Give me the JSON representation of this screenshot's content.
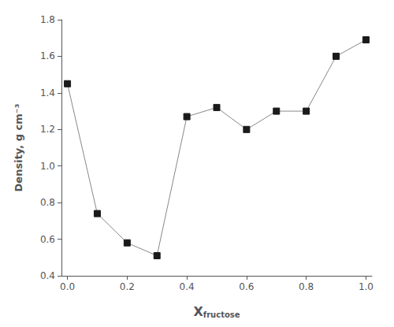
{
  "chart_data": {
    "type": "line",
    "xlabel": "Xfructose",
    "ylabel": "Density, g cm⁻³",
    "x": [
      0.0,
      0.1,
      0.2,
      0.3,
      0.4,
      0.5,
      0.6,
      0.7,
      0.8,
      0.9,
      1.0
    ],
    "values": [
      1.45,
      0.74,
      0.58,
      0.51,
      1.27,
      1.32,
      1.2,
      1.3,
      1.3,
      1.6,
      1.69
    ],
    "xlim": [
      -0.02,
      1.02
    ],
    "ylim": [
      0.4,
      1.8
    ],
    "xticks": [
      {
        "value": 0.0,
        "label": "0.0"
      },
      0.2,
      0.4,
      0.6,
      0.8,
      {
        "value": 1.0,
        "label": "1.0"
      }
    ],
    "yticks": [
      0.4,
      0.6,
      0.8,
      {
        "value": 1.0,
        "label": "1.0"
      },
      1.2,
      1.4,
      1.6,
      1.8
    ],
    "color": "#888888",
    "colors": [
      "#1a1a1a",
      "#1a1a1a",
      "#1a1a1a",
      "#1a1a1a",
      "#1a1a1a",
      "#1a1a1a",
      "#1a1a1a",
      "#1a1a1a",
      "#1a1a1a",
      "#1a1a1a",
      "#1a1a1a"
    ],
    "marker": "square",
    "line_style": "solid",
    "grid": false
  }
}
